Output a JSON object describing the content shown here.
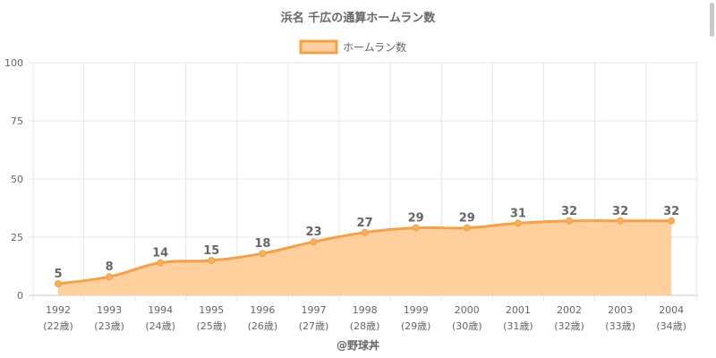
{
  "chart_data": {
    "type": "area",
    "title": "浜名 千広の通算ホームラン数",
    "xlabel": "@野球丼",
    "ylabel": "",
    "categories": [
      "1992",
      "1993",
      "1994",
      "1995",
      "1996",
      "1997",
      "1998",
      "1999",
      "2000",
      "2001",
      "2002",
      "2003",
      "2004"
    ],
    "ages": [
      "(22歳)",
      "(23歳)",
      "(24歳)",
      "(25歳)",
      "(26歳)",
      "(27歳)",
      "(28歳)",
      "(29歳)",
      "(30歳)",
      "(31歳)",
      "(32歳)",
      "(33歳)",
      "(34歳)"
    ],
    "series": [
      {
        "name": "ホームラン数",
        "values": [
          5,
          8,
          14,
          15,
          18,
          23,
          27,
          29,
          29,
          31,
          32,
          32,
          32
        ]
      }
    ],
    "ylim": [
      0,
      100
    ],
    "yticks": [
      0,
      25,
      50,
      75,
      100
    ],
    "grid": true,
    "legend_position": "top",
    "colors": {
      "line": "#f5a04a",
      "fill": "#fdd09e",
      "point": "#f5b05e"
    }
  }
}
